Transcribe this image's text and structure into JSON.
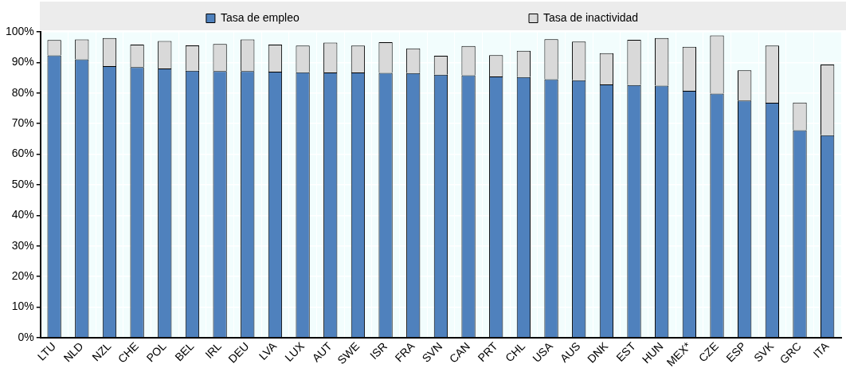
{
  "chart_data": {
    "type": "bar",
    "stacked": true,
    "legend": "top",
    "grid": true,
    "categories": [
      "LTU",
      "NLD",
      "NZL",
      "CHE",
      "POL",
      "BEL",
      "IRL",
      "DEU",
      "LVA",
      "LUX",
      "AUT",
      "SWE",
      "ISR",
      "FRA",
      "SVN",
      "CAN",
      "PRT",
      "CHL",
      "USA",
      "AUS",
      "DNK",
      "EST",
      "HUN",
      "MEX*",
      "CZE",
      "ESP",
      "SVK",
      "GRC",
      "ITA"
    ],
    "series": [
      {
        "name": "Tasa de empleo",
        "color": "#4f81bd",
        "values": [
          92.3,
          91,
          88.8,
          88.5,
          88,
          87.3,
          87.2,
          87.2,
          87,
          86.8,
          86.7,
          86.7,
          86.6,
          86.5,
          86,
          85.8,
          85.4,
          85.2,
          84.5,
          84.2,
          82.8,
          82.6,
          82.4,
          80.7,
          79.8,
          77.5,
          76.8,
          67.8,
          66.2
        ]
      },
      {
        "name": "Tasa de inactividad",
        "color": "#d9d9d9",
        "values": [
          5,
          6.5,
          9.2,
          7.3,
          9,
          8.3,
          8.8,
          10.3,
          8.8,
          8.7,
          9.8,
          8.8,
          10,
          8.1,
          6.2,
          9.6,
          7,
          8.6,
          13.1,
          12.6,
          10.2,
          14.8,
          15.6,
          14.4,
          19,
          9.9,
          18.7,
          9.1,
          23.1
        ]
      }
    ],
    "ylim": [
      0,
      100
    ],
    "yticks": [
      {
        "value": 0,
        "label": "0%"
      },
      {
        "value": 10,
        "label": "10%"
      },
      {
        "value": 20,
        "label": "20%"
      },
      {
        "value": 30,
        "label": "30%"
      },
      {
        "value": 40,
        "label": "40%"
      },
      {
        "value": 50,
        "label": "50%"
      },
      {
        "value": 60,
        "label": "60%"
      },
      {
        "value": 70,
        "label": "70%"
      },
      {
        "value": 80,
        "label": "80%"
      },
      {
        "value": 90,
        "label": "90%"
      },
      {
        "value": 100,
        "label": "100%"
      }
    ]
  }
}
